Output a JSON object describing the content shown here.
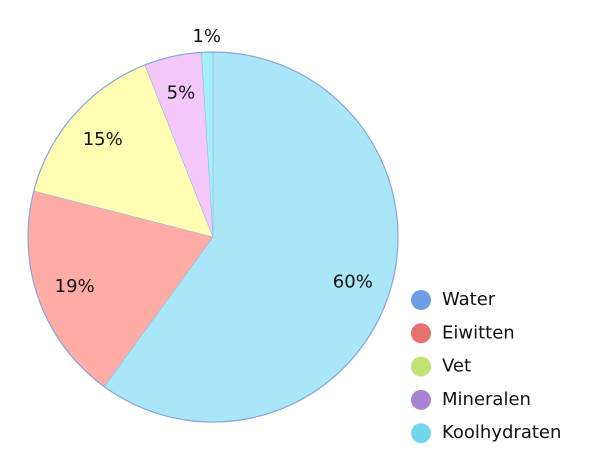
{
  "chart_data": {
    "type": "pie",
    "categories": [
      "Water",
      "Eiwitten",
      "Vet",
      "Mineralen",
      "Koolhydraten"
    ],
    "values": [
      60,
      19,
      15,
      5,
      1
    ],
    "value_labels": [
      "60%",
      "19%",
      "15%",
      "5%",
      "1%"
    ],
    "colors": [
      "#a8e6f8",
      "#ffaba6",
      "#ffffb4",
      "#f4c8fa",
      "#a4f0f8"
    ],
    "legend_colors": [
      "#6c9fe6",
      "#e8716e",
      "#c3e274",
      "#a984d4",
      "#72d6ee"
    ],
    "legend": "bottom-right"
  }
}
